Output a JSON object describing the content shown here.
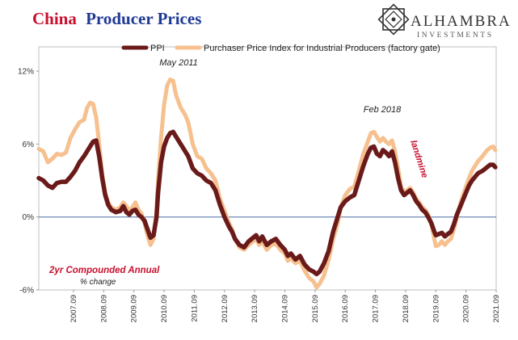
{
  "title": {
    "part1": "China",
    "part2": "Producer Prices",
    "color1": "#c8102e",
    "color2": "#1f3a93"
  },
  "logo": {
    "name": "ALHAMBRA",
    "sub": "INVESTMENTS",
    "icon": "alhambra-star-icon"
  },
  "legend": [
    {
      "label": "PPI",
      "color": "#6b1a1a"
    },
    {
      "label": "Purchaser Price Index for Industrial Producers (factory gate)",
      "color": "#f6c08f"
    }
  ],
  "annotations": {
    "may2011": "May 2011",
    "feb2018": "Feb 2018",
    "landmine": "landmine",
    "note_title": "2yr Compounded Annual",
    "note_sub": "% change"
  },
  "chart_data": {
    "type": "line",
    "ylim": [
      -6,
      14
    ],
    "yticks": [
      {
        "value": 12,
        "label": "12%"
      },
      {
        "value": 6,
        "label": "6%"
      },
      {
        "value": 0,
        "label": "0%"
      },
      {
        "value": -6,
        "label": "-6%"
      }
    ],
    "xlim": [
      2006.6,
      2021.75
    ],
    "xticks": [
      {
        "x": 2007.75,
        "label": "2007.09"
      },
      {
        "x": 2008.75,
        "label": "2008.09"
      },
      {
        "x": 2009.75,
        "label": "2009.09"
      },
      {
        "x": 2010.75,
        "label": "2010.09"
      },
      {
        "x": 2011.75,
        "label": "2011.09"
      },
      {
        "x": 2012.75,
        "label": "2012.09"
      },
      {
        "x": 2013.75,
        "label": "2013.09"
      },
      {
        "x": 2014.75,
        "label": "2014.09"
      },
      {
        "x": 2015.75,
        "label": "2015.09"
      },
      {
        "x": 2016.75,
        "label": "2016.09"
      },
      {
        "x": 2017.75,
        "label": "2017.09"
      },
      {
        "x": 2018.75,
        "label": "2018.09"
      },
      {
        "x": 2019.75,
        "label": "2019.09"
      },
      {
        "x": 2020.75,
        "label": "2020.09"
      },
      {
        "x": 2021.75,
        "label": "2021.09"
      }
    ],
    "zero_line": true,
    "series": [
      {
        "name": "Purchaser Price Index for Industrial Producers (factory gate)",
        "color": "#f6c08f",
        "points": [
          [
            2006.6,
            5.6
          ],
          [
            2006.75,
            5.4
          ],
          [
            2006.9,
            4.5
          ],
          [
            2007.05,
            4.8
          ],
          [
            2007.2,
            5.2
          ],
          [
            2007.35,
            5.1
          ],
          [
            2007.5,
            5.3
          ],
          [
            2007.65,
            6.5
          ],
          [
            2007.8,
            7.2
          ],
          [
            2007.95,
            7.8
          ],
          [
            2008.1,
            8.0
          ],
          [
            2008.2,
            9.0
          ],
          [
            2008.3,
            9.4
          ],
          [
            2008.4,
            9.3
          ],
          [
            2008.5,
            8.2
          ],
          [
            2008.6,
            6.0
          ],
          [
            2008.7,
            3.5
          ],
          [
            2008.8,
            2.0
          ],
          [
            2008.9,
            1.2
          ],
          [
            2009.0,
            0.8
          ],
          [
            2009.15,
            0.6
          ],
          [
            2009.3,
            0.8
          ],
          [
            2009.4,
            1.2
          ],
          [
            2009.5,
            0.9
          ],
          [
            2009.6,
            0.5
          ],
          [
            2009.7,
            0.8
          ],
          [
            2009.8,
            1.2
          ],
          [
            2009.9,
            0.6
          ],
          [
            2010.0,
            0.3
          ],
          [
            2010.1,
            -0.5
          ],
          [
            2010.2,
            -1.5
          ],
          [
            2010.3,
            -2.3
          ],
          [
            2010.4,
            -1.8
          ],
          [
            2010.5,
            0.5
          ],
          [
            2010.55,
            3.0
          ],
          [
            2010.65,
            6.5
          ],
          [
            2010.75,
            9.2
          ],
          [
            2010.85,
            10.8
          ],
          [
            2010.95,
            11.3
          ],
          [
            2011.05,
            11.2
          ],
          [
            2011.15,
            10.0
          ],
          [
            2011.3,
            9.0
          ],
          [
            2011.45,
            8.4
          ],
          [
            2011.55,
            7.8
          ],
          [
            2011.7,
            6.0
          ],
          [
            2011.85,
            5.0
          ],
          [
            2012.0,
            4.8
          ],
          [
            2012.15,
            4.0
          ],
          [
            2012.3,
            3.6
          ],
          [
            2012.45,
            3.0
          ],
          [
            2012.6,
            1.5
          ],
          [
            2012.75,
            0.5
          ],
          [
            2012.9,
            -0.5
          ],
          [
            2013.0,
            -1.0
          ],
          [
            2013.1,
            -1.8
          ],
          [
            2013.25,
            -2.5
          ],
          [
            2013.4,
            -2.7
          ],
          [
            2013.55,
            -2.3
          ],
          [
            2013.7,
            -2.0
          ],
          [
            2013.8,
            -1.8
          ],
          [
            2013.9,
            -2.3
          ],
          [
            2014.0,
            -2.0
          ],
          [
            2014.15,
            -2.7
          ],
          [
            2014.3,
            -2.3
          ],
          [
            2014.45,
            -2.2
          ],
          [
            2014.6,
            -2.7
          ],
          [
            2014.75,
            -3.0
          ],
          [
            2014.85,
            -3.6
          ],
          [
            2014.95,
            -3.4
          ],
          [
            2015.1,
            -3.8
          ],
          [
            2015.25,
            -3.6
          ],
          [
            2015.4,
            -4.4
          ],
          [
            2015.55,
            -5.0
          ],
          [
            2015.7,
            -5.3
          ],
          [
            2015.8,
            -5.8
          ],
          [
            2015.9,
            -5.5
          ],
          [
            2016.05,
            -4.8
          ],
          [
            2016.2,
            -3.5
          ],
          [
            2016.35,
            -1.8
          ],
          [
            2016.5,
            -0.5
          ],
          [
            2016.6,
            0.8
          ],
          [
            2016.75,
            1.8
          ],
          [
            2016.9,
            2.3
          ],
          [
            2017.05,
            2.5
          ],
          [
            2017.2,
            3.8
          ],
          [
            2017.35,
            5.2
          ],
          [
            2017.5,
            6.2
          ],
          [
            2017.6,
            6.9
          ],
          [
            2017.7,
            7.0
          ],
          [
            2017.8,
            6.6
          ],
          [
            2017.9,
            6.2
          ],
          [
            2018.0,
            6.5
          ],
          [
            2018.1,
            6.2
          ],
          [
            2018.2,
            6.0
          ],
          [
            2018.3,
            6.3
          ],
          [
            2018.4,
            5.4
          ],
          [
            2018.5,
            4.0
          ],
          [
            2018.6,
            2.5
          ],
          [
            2018.7,
            2.0
          ],
          [
            2018.8,
            2.2
          ],
          [
            2018.9,
            2.4
          ],
          [
            2019.0,
            2.0
          ],
          [
            2019.1,
            1.5
          ],
          [
            2019.2,
            1.2
          ],
          [
            2019.3,
            0.8
          ],
          [
            2019.4,
            0.6
          ],
          [
            2019.5,
            0.2
          ],
          [
            2019.6,
            -0.5
          ],
          [
            2019.7,
            -1.8
          ],
          [
            2019.75,
            -2.4
          ],
          [
            2019.85,
            -2.3
          ],
          [
            2019.95,
            -2.0
          ],
          [
            2020.05,
            -2.3
          ],
          [
            2020.15,
            -2.0
          ],
          [
            2020.25,
            -1.8
          ],
          [
            2020.35,
            -1.0
          ],
          [
            2020.45,
            0.0
          ],
          [
            2020.55,
            1.0
          ],
          [
            2020.65,
            1.8
          ],
          [
            2020.75,
            2.5
          ],
          [
            2020.85,
            3.2
          ],
          [
            2020.95,
            3.8
          ],
          [
            2021.05,
            4.2
          ],
          [
            2021.15,
            4.6
          ],
          [
            2021.3,
            5.0
          ],
          [
            2021.45,
            5.5
          ],
          [
            2021.55,
            5.7
          ],
          [
            2021.65,
            5.8
          ],
          [
            2021.72,
            5.5
          ]
        ]
      },
      {
        "name": "PPI",
        "color": "#6b1a1a",
        "points": [
          [
            2006.6,
            3.2
          ],
          [
            2006.75,
            3.0
          ],
          [
            2006.9,
            2.6
          ],
          [
            2007.05,
            2.4
          ],
          [
            2007.2,
            2.8
          ],
          [
            2007.35,
            2.9
          ],
          [
            2007.5,
            2.9
          ],
          [
            2007.65,
            3.3
          ],
          [
            2007.8,
            3.8
          ],
          [
            2007.95,
            4.5
          ],
          [
            2008.1,
            5.0
          ],
          [
            2008.25,
            5.6
          ],
          [
            2008.4,
            6.2
          ],
          [
            2008.5,
            6.3
          ],
          [
            2008.6,
            5.0
          ],
          [
            2008.7,
            3.2
          ],
          [
            2008.8,
            1.8
          ],
          [
            2008.9,
            1.0
          ],
          [
            2009.0,
            0.6
          ],
          [
            2009.15,
            0.4
          ],
          [
            2009.3,
            0.5
          ],
          [
            2009.4,
            0.9
          ],
          [
            2009.5,
            0.4
          ],
          [
            2009.6,
            0.2
          ],
          [
            2009.7,
            0.5
          ],
          [
            2009.8,
            0.6
          ],
          [
            2009.9,
            0.2
          ],
          [
            2010.0,
            0.0
          ],
          [
            2010.1,
            -0.3
          ],
          [
            2010.2,
            -1.0
          ],
          [
            2010.3,
            -1.7
          ],
          [
            2010.4,
            -1.5
          ],
          [
            2010.5,
            0.0
          ],
          [
            2010.55,
            2.0
          ],
          [
            2010.65,
            4.5
          ],
          [
            2010.75,
            5.8
          ],
          [
            2010.85,
            6.5
          ],
          [
            2010.95,
            6.9
          ],
          [
            2011.05,
            7.0
          ],
          [
            2011.15,
            6.6
          ],
          [
            2011.3,
            6.0
          ],
          [
            2011.45,
            5.4
          ],
          [
            2011.55,
            5.0
          ],
          [
            2011.7,
            4.0
          ],
          [
            2011.85,
            3.6
          ],
          [
            2012.0,
            3.4
          ],
          [
            2012.15,
            3.0
          ],
          [
            2012.3,
            2.8
          ],
          [
            2012.45,
            2.2
          ],
          [
            2012.6,
            1.0
          ],
          [
            2012.75,
            0.0
          ],
          [
            2012.9,
            -0.8
          ],
          [
            2013.0,
            -1.2
          ],
          [
            2013.1,
            -1.8
          ],
          [
            2013.25,
            -2.3
          ],
          [
            2013.4,
            -2.5
          ],
          [
            2013.55,
            -2.0
          ],
          [
            2013.7,
            -1.7
          ],
          [
            2013.8,
            -1.5
          ],
          [
            2013.9,
            -2.0
          ],
          [
            2014.0,
            -1.6
          ],
          [
            2014.15,
            -2.3
          ],
          [
            2014.3,
            -2.0
          ],
          [
            2014.45,
            -1.8
          ],
          [
            2014.6,
            -2.3
          ],
          [
            2014.75,
            -2.7
          ],
          [
            2014.85,
            -3.2
          ],
          [
            2014.95,
            -3.0
          ],
          [
            2015.1,
            -3.5
          ],
          [
            2015.25,
            -3.2
          ],
          [
            2015.4,
            -3.9
          ],
          [
            2015.55,
            -4.3
          ],
          [
            2015.7,
            -4.5
          ],
          [
            2015.8,
            -4.7
          ],
          [
            2015.9,
            -4.5
          ],
          [
            2016.05,
            -3.8
          ],
          [
            2016.2,
            -2.8
          ],
          [
            2016.35,
            -1.2
          ],
          [
            2016.5,
            0.0
          ],
          [
            2016.6,
            0.8
          ],
          [
            2016.75,
            1.3
          ],
          [
            2016.9,
            1.6
          ],
          [
            2017.05,
            1.8
          ],
          [
            2017.2,
            3.0
          ],
          [
            2017.35,
            4.2
          ],
          [
            2017.5,
            5.2
          ],
          [
            2017.6,
            5.7
          ],
          [
            2017.7,
            5.8
          ],
          [
            2017.8,
            5.2
          ],
          [
            2017.9,
            5.0
          ],
          [
            2018.0,
            5.5
          ],
          [
            2018.1,
            5.3
          ],
          [
            2018.2,
            5.0
          ],
          [
            2018.3,
            5.4
          ],
          [
            2018.4,
            4.5
          ],
          [
            2018.5,
            3.2
          ],
          [
            2018.6,
            2.2
          ],
          [
            2018.7,
            1.8
          ],
          [
            2018.8,
            2.0
          ],
          [
            2018.9,
            2.2
          ],
          [
            2019.0,
            1.8
          ],
          [
            2019.1,
            1.3
          ],
          [
            2019.2,
            1.0
          ],
          [
            2019.3,
            0.6
          ],
          [
            2019.4,
            0.4
          ],
          [
            2019.5,
            0.0
          ],
          [
            2019.6,
            -0.5
          ],
          [
            2019.7,
            -1.2
          ],
          [
            2019.75,
            -1.5
          ],
          [
            2019.85,
            -1.4
          ],
          [
            2019.95,
            -1.3
          ],
          [
            2020.05,
            -1.6
          ],
          [
            2020.15,
            -1.4
          ],
          [
            2020.25,
            -1.2
          ],
          [
            2020.35,
            -0.6
          ],
          [
            2020.45,
            0.2
          ],
          [
            2020.55,
            0.8
          ],
          [
            2020.65,
            1.4
          ],
          [
            2020.75,
            2.0
          ],
          [
            2020.85,
            2.6
          ],
          [
            2020.95,
            3.0
          ],
          [
            2021.05,
            3.3
          ],
          [
            2021.15,
            3.6
          ],
          [
            2021.3,
            3.8
          ],
          [
            2021.45,
            4.1
          ],
          [
            2021.55,
            4.3
          ],
          [
            2021.65,
            4.3
          ],
          [
            2021.72,
            4.1
          ]
        ]
      }
    ]
  }
}
